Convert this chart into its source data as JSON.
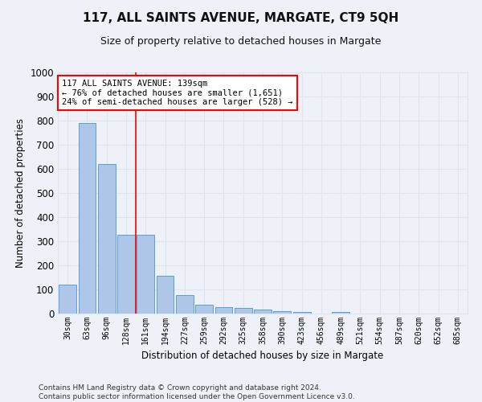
{
  "title": "117, ALL SAINTS AVENUE, MARGATE, CT9 5QH",
  "subtitle": "Size of property relative to detached houses in Margate",
  "xlabel": "Distribution of detached houses by size in Margate",
  "ylabel": "Number of detached properties",
  "bar_labels": [
    "30sqm",
    "63sqm",
    "96sqm",
    "128sqm",
    "161sqm",
    "194sqm",
    "227sqm",
    "259sqm",
    "292sqm",
    "325sqm",
    "358sqm",
    "390sqm",
    "423sqm",
    "456sqm",
    "489sqm",
    "521sqm",
    "554sqm",
    "587sqm",
    "620sqm",
    "652sqm",
    "685sqm"
  ],
  "bar_values": [
    120,
    790,
    620,
    328,
    328,
    158,
    78,
    38,
    26,
    24,
    16,
    10,
    8,
    0,
    8,
    0,
    0,
    0,
    0,
    0,
    0
  ],
  "bar_color": "#aec6e8",
  "bar_edge_color": "#5a9fd4",
  "grid_color": "#dce6f0",
  "vline_x": 3.5,
  "vline_color": "red",
  "annotation_text": "117 ALL SAINTS AVENUE: 139sqm\n← 76% of detached houses are smaller (1,651)\n24% of semi-detached houses are larger (528) →",
  "annotation_box_color": "white",
  "annotation_box_edge_color": "red",
  "ylim": [
    0,
    1000
  ],
  "yticks": [
    0,
    100,
    200,
    300,
    400,
    500,
    600,
    700,
    800,
    900,
    1000
  ],
  "footer_line1": "Contains HM Land Registry data © Crown copyright and database right 2024.",
  "footer_line2": "Contains public sector information licensed under the Open Government Licence v3.0.",
  "bg_color": "#eef2f8",
  "title_fontsize": 11,
  "subtitle_fontsize": 9
}
